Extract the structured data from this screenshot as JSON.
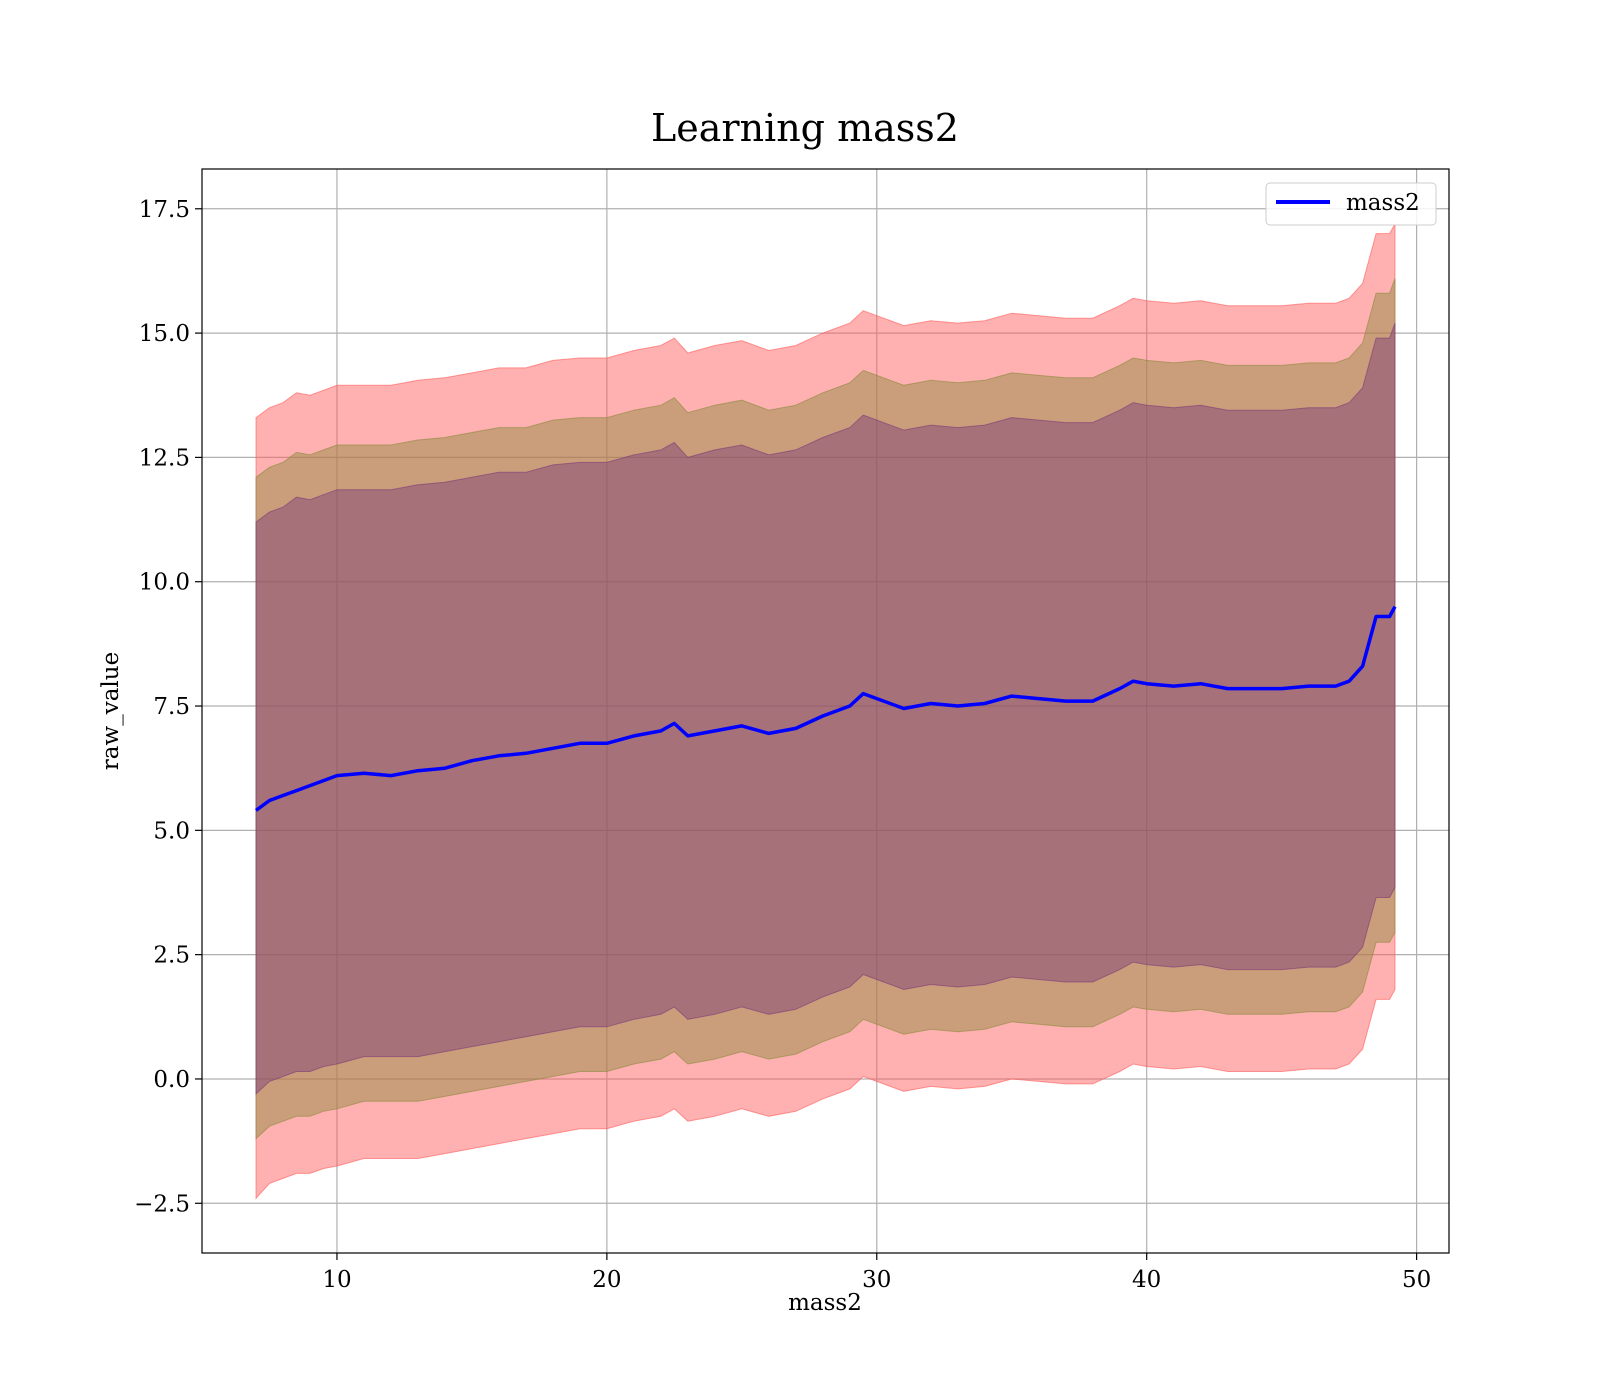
{
  "chart_data": {
    "type": "area",
    "title": "Learning mass2",
    "xlabel": "mass2",
    "ylabel": "raw_value",
    "xlim": [
      5,
      51.2
    ],
    "ylim": [
      -3.5,
      18.3
    ],
    "xticks": [
      10,
      20,
      30,
      40,
      50
    ],
    "xtick_labels": [
      "10",
      "20",
      "30",
      "40",
      "50"
    ],
    "yticks": [
      -2.5,
      0.0,
      2.5,
      5.0,
      7.5,
      10.0,
      12.5,
      15.0,
      17.5
    ],
    "ytick_labels": [
      "−2.5",
      "0.0",
      "2.5",
      "5.0",
      "7.5",
      "10.0",
      "12.5",
      "15.0",
      "17.5"
    ],
    "grid": true,
    "legend": {
      "position": "top-right",
      "entries": [
        "mass2"
      ]
    },
    "x": [
      7.0,
      7.5,
      8.0,
      8.5,
      9.0,
      9.5,
      10.0,
      11.0,
      12.0,
      13.0,
      14.0,
      15.0,
      16.0,
      17.0,
      18.0,
      19.0,
      20.0,
      21.0,
      22.0,
      22.5,
      23.0,
      24.0,
      25.0,
      26.0,
      27.0,
      28.0,
      29.0,
      29.5,
      30.0,
      31.0,
      32.0,
      33.0,
      34.0,
      35.0,
      36.0,
      37.0,
      38.0,
      39.0,
      39.5,
      40.0,
      41.0,
      42.0,
      43.0,
      44.0,
      45.0,
      46.0,
      47.0,
      47.5,
      48.0,
      48.5,
      49.0,
      49.2
    ],
    "series": [
      {
        "name": "mass2",
        "color": "#0000ff",
        "values": [
          5.4,
          5.6,
          5.7,
          5.8,
          5.9,
          6.0,
          6.1,
          6.15,
          6.1,
          6.2,
          6.25,
          6.4,
          6.5,
          6.55,
          6.65,
          6.75,
          6.75,
          6.9,
          7.0,
          7.15,
          6.9,
          7.0,
          7.1,
          6.95,
          7.05,
          7.3,
          7.5,
          7.75,
          7.65,
          7.45,
          7.55,
          7.5,
          7.55,
          7.7,
          7.65,
          7.6,
          7.6,
          7.85,
          8.0,
          7.95,
          7.9,
          7.95,
          7.85,
          7.85,
          7.85,
          7.9,
          7.9,
          8.0,
          8.3,
          9.3,
          9.3,
          9.5
        ]
      }
    ],
    "bands": [
      {
        "color": "#ff5a5a",
        "opacity": 0.48,
        "upper": [
          13.3,
          13.5,
          13.6,
          13.8,
          13.75,
          13.85,
          13.95,
          13.95,
          13.95,
          14.05,
          14.1,
          14.2,
          14.3,
          14.3,
          14.45,
          14.5,
          14.5,
          14.65,
          14.75,
          14.9,
          14.6,
          14.75,
          14.85,
          14.65,
          14.75,
          15.0,
          15.2,
          15.45,
          15.35,
          15.15,
          15.25,
          15.2,
          15.25,
          15.4,
          15.35,
          15.3,
          15.3,
          15.55,
          15.7,
          15.65,
          15.6,
          15.65,
          15.55,
          15.55,
          15.55,
          15.6,
          15.6,
          15.7,
          16.0,
          17.0,
          17.0,
          17.2
        ],
        "lower": [
          -2.4,
          -2.1,
          -2.0,
          -1.9,
          -1.9,
          -1.8,
          -1.75,
          -1.6,
          -1.6,
          -1.6,
          -1.5,
          -1.4,
          -1.3,
          -1.2,
          -1.1,
          -1.0,
          -1.0,
          -0.85,
          -0.75,
          -0.6,
          -0.85,
          -0.75,
          -0.6,
          -0.75,
          -0.65,
          -0.4,
          -0.2,
          0.05,
          -0.05,
          -0.25,
          -0.15,
          -0.2,
          -0.15,
          0.0,
          -0.05,
          -0.1,
          -0.1,
          0.15,
          0.3,
          0.25,
          0.2,
          0.25,
          0.15,
          0.15,
          0.15,
          0.2,
          0.2,
          0.3,
          0.6,
          1.6,
          1.6,
          1.8
        ]
      },
      {
        "color": "#8a8a3c",
        "opacity": 0.45,
        "upper": [
          12.1,
          12.3,
          12.4,
          12.6,
          12.55,
          12.65,
          12.75,
          12.75,
          12.75,
          12.85,
          12.9,
          13.0,
          13.1,
          13.1,
          13.25,
          13.3,
          13.3,
          13.45,
          13.55,
          13.7,
          13.4,
          13.55,
          13.65,
          13.45,
          13.55,
          13.8,
          14.0,
          14.25,
          14.15,
          13.95,
          14.05,
          14.0,
          14.05,
          14.2,
          14.15,
          14.1,
          14.1,
          14.35,
          14.5,
          14.45,
          14.4,
          14.45,
          14.35,
          14.35,
          14.35,
          14.4,
          14.4,
          14.5,
          14.8,
          15.8,
          15.8,
          16.1
        ],
        "lower": [
          -1.2,
          -0.95,
          -0.85,
          -0.75,
          -0.75,
          -0.65,
          -0.6,
          -0.45,
          -0.45,
          -0.45,
          -0.35,
          -0.25,
          -0.15,
          -0.05,
          0.05,
          0.15,
          0.15,
          0.3,
          0.4,
          0.55,
          0.3,
          0.4,
          0.55,
          0.4,
          0.5,
          0.75,
          0.95,
          1.2,
          1.1,
          0.9,
          1.0,
          0.95,
          1.0,
          1.15,
          1.1,
          1.05,
          1.05,
          1.3,
          1.45,
          1.4,
          1.35,
          1.4,
          1.3,
          1.3,
          1.3,
          1.35,
          1.35,
          1.45,
          1.75,
          2.75,
          2.75,
          2.95
        ]
      },
      {
        "color": "#7d3a78",
        "opacity": 0.45,
        "upper": [
          11.2,
          11.4,
          11.5,
          11.7,
          11.65,
          11.75,
          11.85,
          11.85,
          11.85,
          11.95,
          12.0,
          12.1,
          12.2,
          12.2,
          12.35,
          12.4,
          12.4,
          12.55,
          12.65,
          12.8,
          12.5,
          12.65,
          12.75,
          12.55,
          12.65,
          12.9,
          13.1,
          13.35,
          13.25,
          13.05,
          13.15,
          13.1,
          13.15,
          13.3,
          13.25,
          13.2,
          13.2,
          13.45,
          13.6,
          13.55,
          13.5,
          13.55,
          13.45,
          13.45,
          13.45,
          13.5,
          13.5,
          13.6,
          13.9,
          14.9,
          14.9,
          15.2
        ],
        "lower": [
          -0.3,
          -0.05,
          0.05,
          0.15,
          0.15,
          0.25,
          0.3,
          0.45,
          0.45,
          0.45,
          0.55,
          0.65,
          0.75,
          0.85,
          0.95,
          1.05,
          1.05,
          1.2,
          1.3,
          1.45,
          1.2,
          1.3,
          1.45,
          1.3,
          1.4,
          1.65,
          1.85,
          2.1,
          2.0,
          1.8,
          1.9,
          1.85,
          1.9,
          2.05,
          2.0,
          1.95,
          1.95,
          2.2,
          2.35,
          2.3,
          2.25,
          2.3,
          2.2,
          2.2,
          2.2,
          2.25,
          2.25,
          2.35,
          2.65,
          3.65,
          3.65,
          3.85
        ]
      }
    ]
  }
}
